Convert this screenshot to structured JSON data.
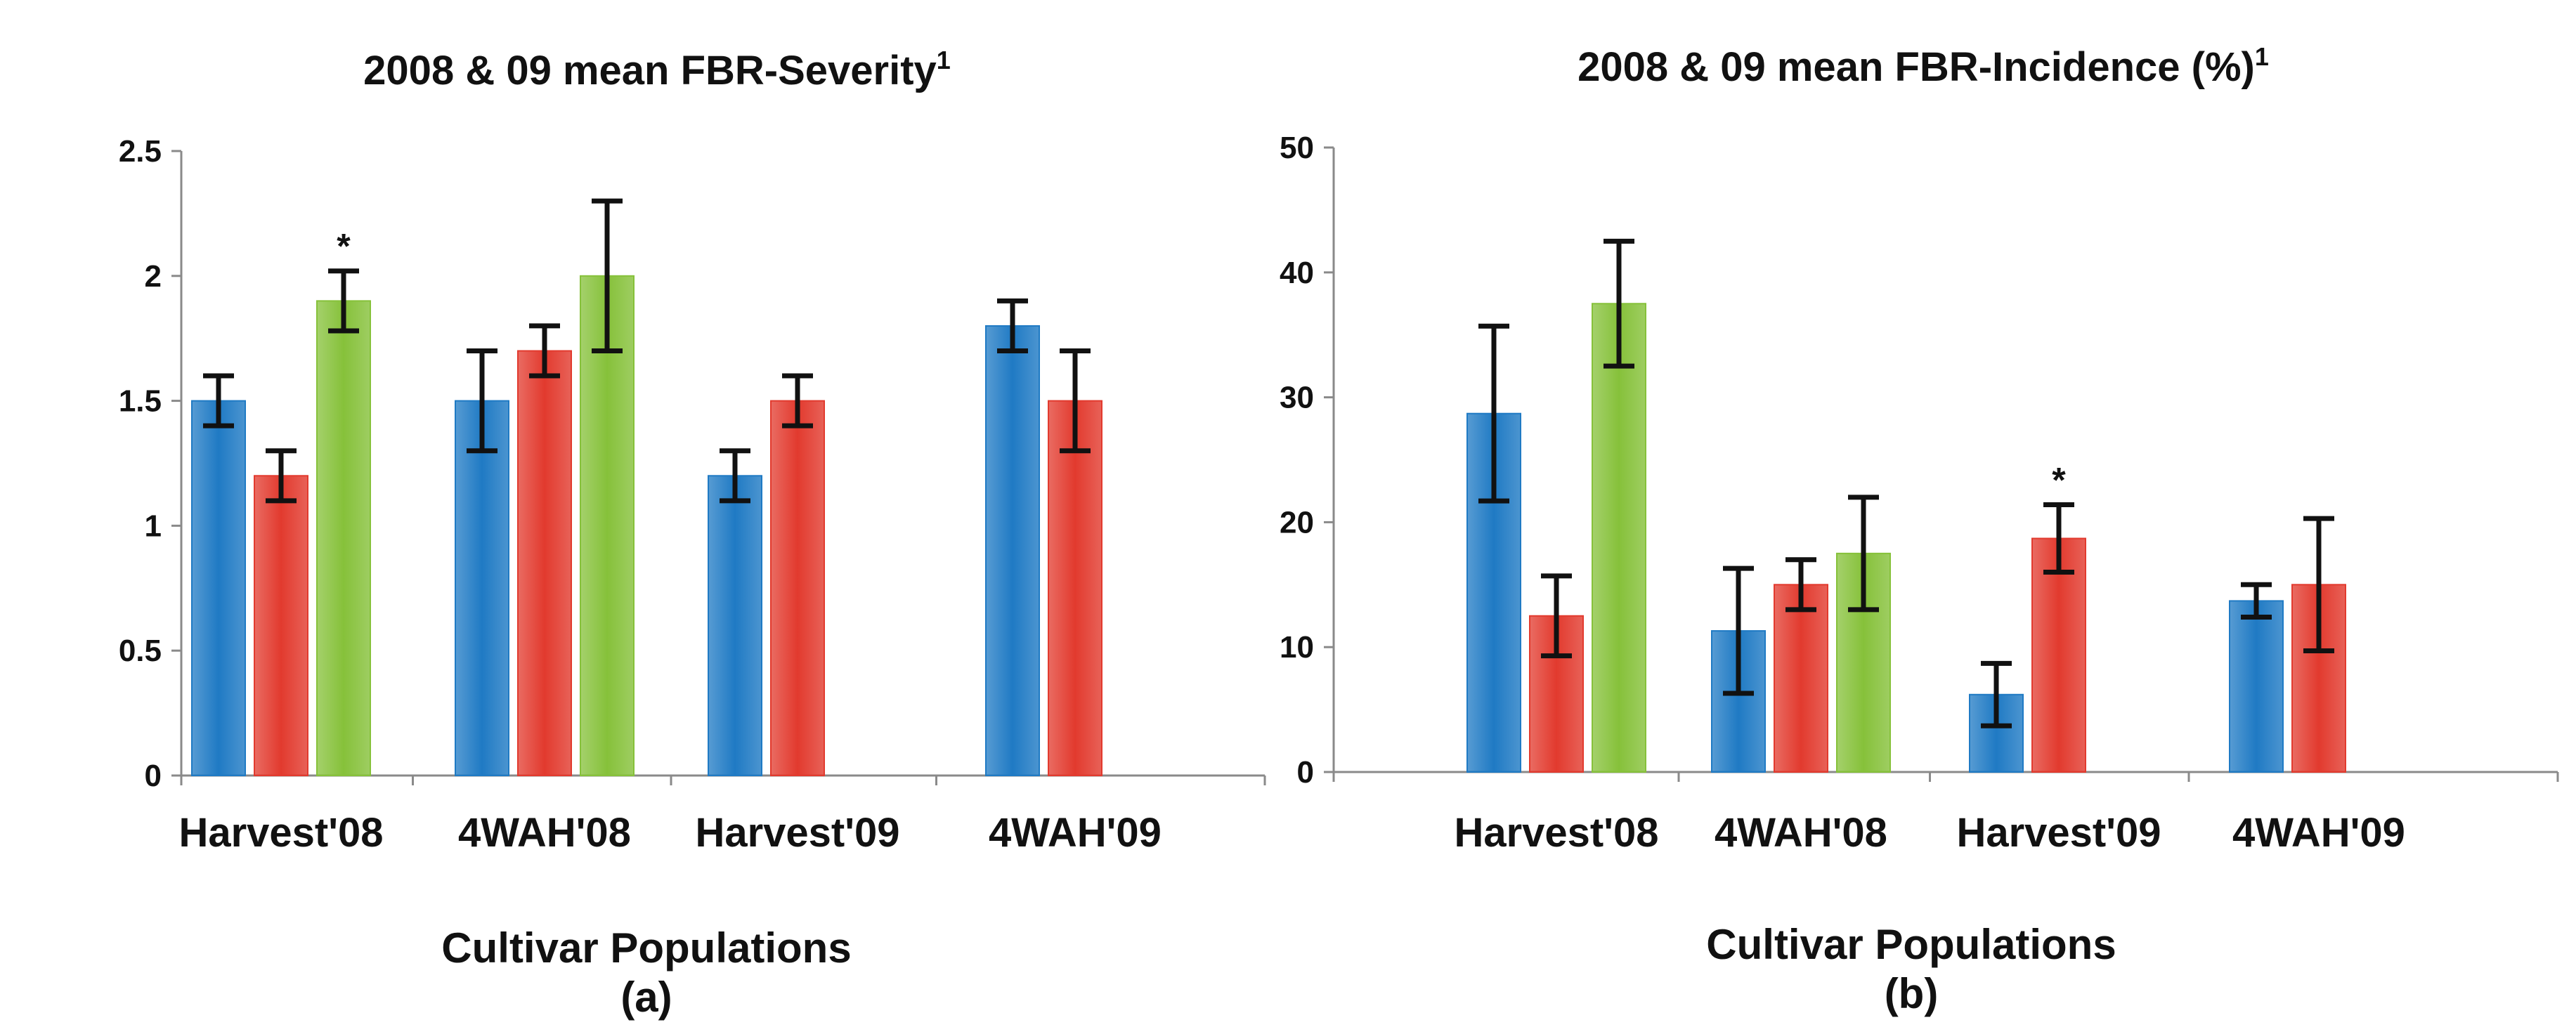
{
  "colors": {
    "series_blue": "#1f7ac4",
    "series_red": "#e23a2e",
    "series_green": "#86c13a"
  },
  "chart_data": [
    {
      "type": "bar",
      "title": "2008 & 09 mean FBR-Severity",
      "title_superscript": "1",
      "xlabel": "Cultivar Populations",
      "panel_label": "(a)",
      "ylabel": "",
      "ylim": [
        0,
        2.5
      ],
      "yticks": [
        "0",
        "0.5",
        "1",
        "1.5",
        "2",
        "2.5"
      ],
      "ytick_values": [
        0,
        0.5,
        1,
        1.5,
        2,
        2.5
      ],
      "grid": false,
      "categories": [
        "Harvest'08",
        "4WAH'08",
        "Harvest'09",
        "4WAH'09"
      ],
      "series": [
        {
          "values": [
            1.5,
            1.5,
            1.2,
            1.8
          ],
          "errors": [
            0.1,
            0.2,
            0.1,
            0.1
          ]
        },
        {
          "values": [
            1.2,
            1.7,
            1.5,
            1.5
          ],
          "errors": [
            0.1,
            0.1,
            0.1,
            0.2
          ]
        },
        {
          "values": [
            1.9,
            2.0,
            null,
            null
          ],
          "errors": [
            0.12,
            0.3,
            null,
            null
          ]
        }
      ],
      "annotations": [
        {
          "text": "*",
          "category": 0,
          "series": 2
        }
      ]
    },
    {
      "type": "bar",
      "title": "2008 & 09 mean FBR-Incidence (%)",
      "title_superscript": "1",
      "xlabel": "Cultivar Populations",
      "panel_label": "(b)",
      "ylabel": "",
      "ylim": [
        0,
        50
      ],
      "yticks": [
        "0",
        "10",
        "20",
        "30",
        "40",
        "50"
      ],
      "ytick_values": [
        0,
        10,
        20,
        30,
        40,
        50
      ],
      "grid": false,
      "categories": [
        "Harvest'08",
        "4WAH'08",
        "Harvest'09",
        "4WAH'09"
      ],
      "series": [
        {
          "values": [
            28.7,
            11.3,
            6.2,
            13.7
          ],
          "errors": [
            7.0,
            5.0,
            2.5,
            1.3
          ]
        },
        {
          "values": [
            12.5,
            15.0,
            18.7,
            15.0
          ],
          "errors": [
            3.2,
            2.0,
            2.7,
            5.3
          ]
        },
        {
          "values": [
            37.5,
            17.5,
            null,
            null
          ],
          "errors": [
            5.0,
            4.5,
            null,
            null
          ]
        }
      ],
      "annotations": [
        {
          "text": "*",
          "category": 2,
          "series": 1
        }
      ]
    }
  ]
}
